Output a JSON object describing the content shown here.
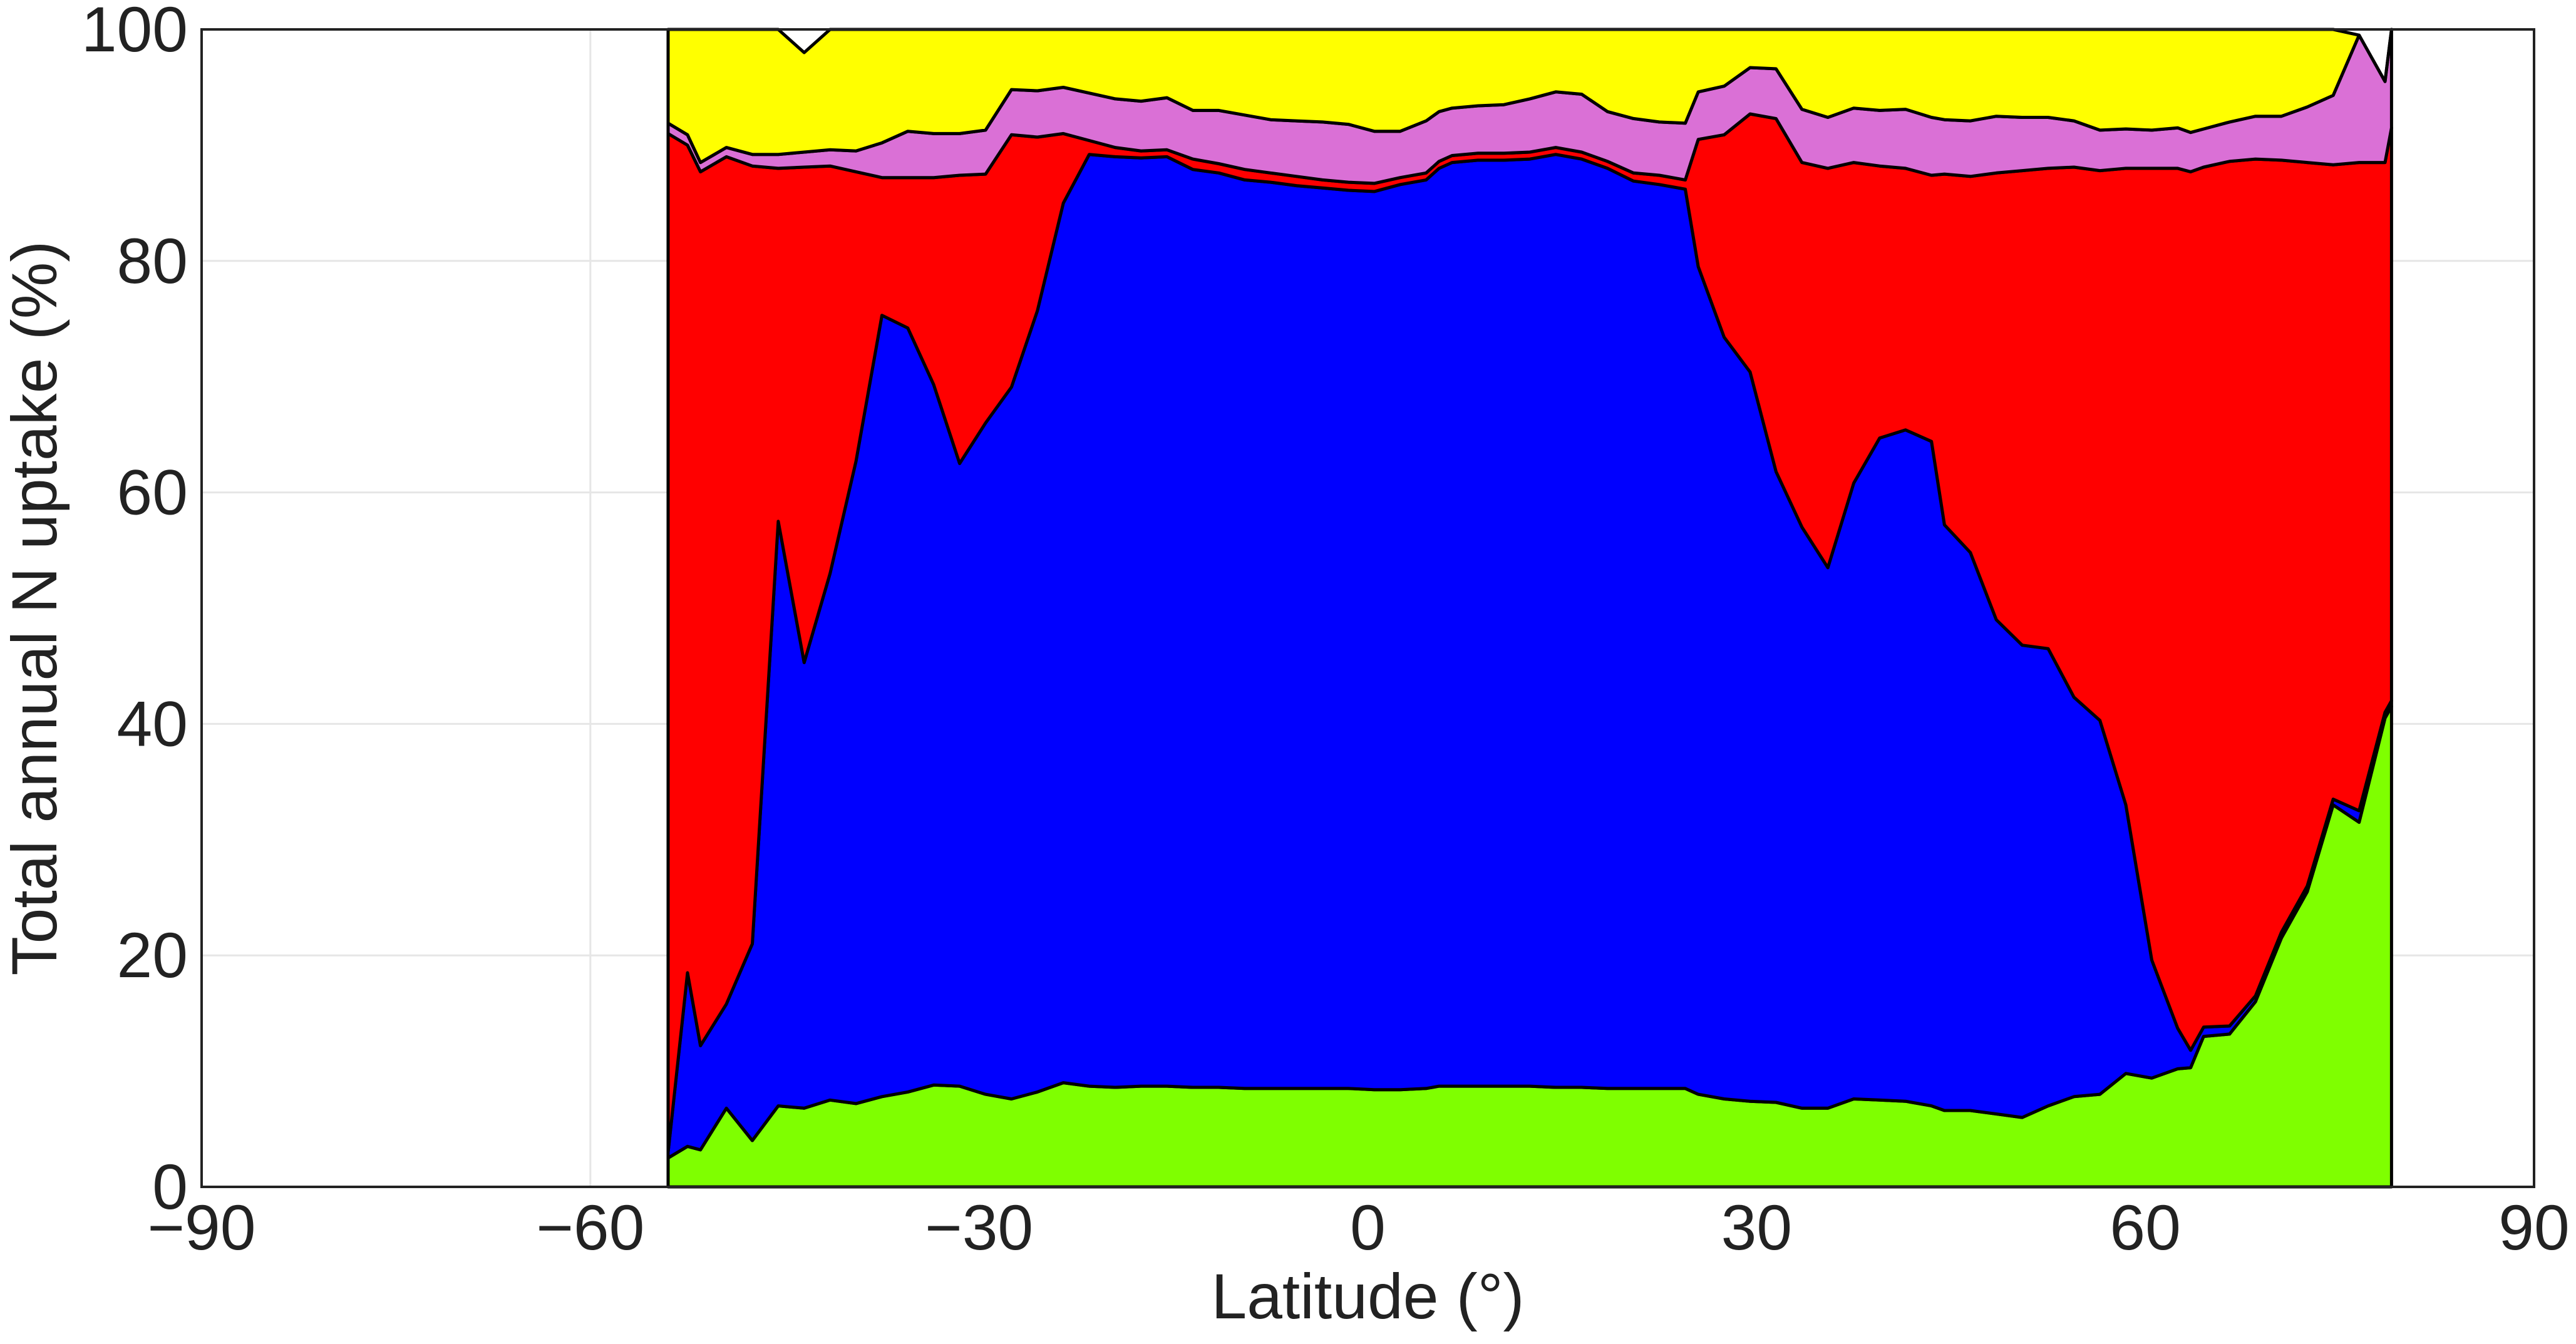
{
  "chart_data": {
    "type": "area",
    "stacked": true,
    "title": "",
    "xlabel": "Latitude (°)",
    "ylabel": "Total annual N uptake (%)",
    "xlim": [
      -90,
      90
    ],
    "ylim": [
      0,
      100
    ],
    "xticks": [
      -90,
      -60,
      -30,
      0,
      30,
      60,
      90
    ],
    "yticks": [
      0,
      20,
      40,
      60,
      80,
      100
    ],
    "xtick_labels": [
      "−90",
      "−60",
      "−30",
      "0",
      "30",
      "60",
      "90"
    ],
    "ytick_labels": [
      "0",
      "20",
      "40",
      "60",
      "80",
      "100"
    ],
    "grid": true,
    "legend": "none",
    "x": [
      -54,
      -52.5,
      -51.5,
      -49.5,
      -47.5,
      -45.5,
      -43.5,
      -41.5,
      -39.5,
      -37.5,
      -35.5,
      -33.5,
      -31.5,
      -29.5,
      -27.5,
      -25.5,
      -23.5,
      -21.5,
      -19.5,
      -17.5,
      -15.5,
      -13.5,
      -11.5,
      -9.5,
      -7.5,
      -5.5,
      -3.5,
      -1.5,
      0.5,
      2.5,
      4.5,
      5.5,
      6.5,
      8.5,
      10.5,
      12.5,
      14.5,
      16.5,
      18.5,
      20.5,
      22.5,
      24.5,
      25.5,
      27.5,
      29.5,
      31.5,
      33.5,
      35.5,
      37.5,
      39.5,
      41.5,
      43.5,
      44.5,
      46.5,
      48.5,
      50.5,
      52.5,
      54.5,
      56.5,
      58.5,
      60.5,
      62.5,
      63.5,
      64.5,
      66.5,
      68.5,
      70.5,
      72.5,
      74.5,
      76.5,
      78.5,
      79
    ],
    "series": [
      {
        "color": "#7fff00",
        "values": [
          2.5,
          3.5,
          3.2,
          6.8,
          4.0,
          7.0,
          6.8,
          7.5,
          7.2,
          7.8,
          8.2,
          8.8,
          8.7,
          8.0,
          7.6,
          8.2,
          9.0,
          8.7,
          8.6,
          8.7,
          8.7,
          8.6,
          8.6,
          8.5,
          8.5,
          8.5,
          8.5,
          8.5,
          8.4,
          8.4,
          8.5,
          8.7,
          8.7,
          8.7,
          8.7,
          8.7,
          8.6,
          8.6,
          8.5,
          8.5,
          8.5,
          8.5,
          8.0,
          7.6,
          7.4,
          7.3,
          6.8,
          6.8,
          7.6,
          7.5,
          7.4,
          7.0,
          6.6,
          6.6,
          6.3,
          6.0,
          7.0,
          7.8,
          8.0,
          9.8,
          9.4,
          10.2,
          10.3,
          13.0,
          13.2,
          16.0,
          21.5,
          25.5,
          33.0,
          31.5,
          40.5,
          41.5
        ]
      },
      {
        "color": "#0000ff",
        "values": [
          0.5,
          15.0,
          9.0,
          9.0,
          17.0,
          50.5,
          38.5,
          45.5,
          55.5,
          67.5,
          66.0,
          60.5,
          53.8,
          58.0,
          61.5,
          67.5,
          76.0,
          80.5,
          80.4,
          80.2,
          80.3,
          79.3,
          79.0,
          78.5,
          78.3,
          78.0,
          77.8,
          77.6,
          77.6,
          78.2,
          78.5,
          79.3,
          79.8,
          80.0,
          80.0,
          80.1,
          80.6,
          80.2,
          79.5,
          78.4,
          78.1,
          77.7,
          71.5,
          65.8,
          63.0,
          54.5,
          50.2,
          46.7,
          53.2,
          57.2,
          58.0,
          57.4,
          50.6,
          48.2,
          42.7,
          40.8,
          39.5,
          34.5,
          32.3,
          23.2,
          10.2,
          3.5,
          1.5,
          0.8,
          0.7,
          0.5,
          0.5,
          0.5,
          0.5,
          1.0,
          0.5,
          0.5
        ]
      },
      {
        "color": "#ff0000",
        "values": [
          88.0,
          71.5,
          75.5,
          73.2,
          67.2,
          30.5,
          42.8,
          35.2,
          25.0,
          11.9,
          13.0,
          17.9,
          24.9,
          21.5,
          21.8,
          15.0,
          6.0,
          1.2,
          0.8,
          0.6,
          0.6,
          0.9,
          0.8,
          0.9,
          0.8,
          0.8,
          0.7,
          0.7,
          0.7,
          0.6,
          0.6,
          0.6,
          0.6,
          0.6,
          0.6,
          0.6,
          0.6,
          0.6,
          0.6,
          0.7,
          0.8,
          0.8,
          11.0,
          17.5,
          22.3,
          30.5,
          31.5,
          34.5,
          27.7,
          23.5,
          22.6,
          23.0,
          30.3,
          32.5,
          38.6,
          41.0,
          41.5,
          45.8,
          47.5,
          55.0,
          68.4,
          74.3,
          75.9,
          74.3,
          74.7,
          72.3,
          66.7,
          62.5,
          54.8,
          56.0,
          47.5,
          49.5
        ]
      },
      {
        "color": "#da70d6",
        "values": [
          0.9,
          0.9,
          0.8,
          0.8,
          1.0,
          1.2,
          1.3,
          1.4,
          1.8,
          3.0,
          4.0,
          3.8,
          3.6,
          3.8,
          3.9,
          4.0,
          4.0,
          4.1,
          4.2,
          4.3,
          4.5,
          4.2,
          4.6,
          4.7,
          4.6,
          4.8,
          5.0,
          5.0,
          4.5,
          4.0,
          4.5,
          4.3,
          4.1,
          4.1,
          4.2,
          4.6,
          4.8,
          5.0,
          4.3,
          4.7,
          4.6,
          4.9,
          4.1,
          4.2,
          4.0,
          4.3,
          4.6,
          4.4,
          4.7,
          4.8,
          5.1,
          5.0,
          4.7,
          4.8,
          4.9,
          4.6,
          4.4,
          4.0,
          3.5,
          3.4,
          3.3,
          3.5,
          3.4,
          3.3,
          3.4,
          3.7,
          3.8,
          4.8,
          6.0,
          11.0,
          7.0,
          8.5
        ]
      },
      {
        "color": "#ffff00",
        "values": [
          8.1,
          9.1,
          11.5,
          10.2,
          10.8,
          10.8,
          8.6,
          10.4,
          10.5,
          9.8,
          8.8,
          9.0,
          9.0,
          8.7,
          5.2,
          5.3,
          5.0,
          5.5,
          6.0,
          6.2,
          5.9,
          7.0,
          7.0,
          7.4,
          7.8,
          7.9,
          8.0,
          8.2,
          8.8,
          8.8,
          7.9,
          7.1,
          6.8,
          6.6,
          6.5,
          6.0,
          5.4,
          5.6,
          7.1,
          7.7,
          8.0,
          8.1,
          5.4,
          4.9,
          3.3,
          3.4,
          6.9,
          7.6,
          6.8,
          7.0,
          6.9,
          7.6,
          7.8,
          7.9,
          7.5,
          7.6,
          7.6,
          7.9,
          8.7,
          8.6,
          8.7,
          8.5,
          8.9,
          8.6,
          8.0,
          7.5,
          7.5,
          6.7,
          5.7,
          0.0,
          0.0,
          0.0
        ]
      }
    ]
  }
}
